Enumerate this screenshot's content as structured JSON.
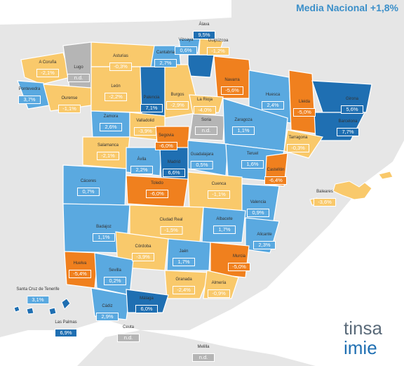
{
  "header": {
    "title": "Media Nacional +1,8%"
  },
  "legend_colors": {
    "dark_blue": "#1f6fb2",
    "light_blue": "#5aa9e0",
    "yellow": "#f9c96b",
    "orange": "#f0801e",
    "grey": "#b5b5b5",
    "land_bg": "#e6e6e6",
    "sea": "#ffffff"
  },
  "provinces": [
    {
      "name": "Álava",
      "value": "9,5%",
      "cat": "dark_blue"
    },
    {
      "name": "Vizcaya",
      "value": "0,6%",
      "cat": "light_blue"
    },
    {
      "name": "Guipúzcoa",
      "value": "-1,2%",
      "cat": "yellow"
    },
    {
      "name": "Cantabria",
      "value": "2,7%",
      "cat": "light_blue"
    },
    {
      "name": "Asturias",
      "value": "-0,3%",
      "cat": "yellow"
    },
    {
      "name": "A Coruña",
      "value": "-2,1%",
      "cat": "yellow"
    },
    {
      "name": "Lugo",
      "value": "n.d.",
      "cat": "grey"
    },
    {
      "name": "Pontevedra",
      "value": "3,7%",
      "cat": "light_blue"
    },
    {
      "name": "Ourense",
      "value": "-1,1%",
      "cat": "yellow"
    },
    {
      "name": "León",
      "value": "-2,2%",
      "cat": "yellow"
    },
    {
      "name": "Palencia",
      "value": "7,1%",
      "cat": "dark_blue"
    },
    {
      "name": "Burgos",
      "value": "-2,9%",
      "cat": "yellow"
    },
    {
      "name": "Navarra",
      "value": "-5,6%",
      "cat": "orange"
    },
    {
      "name": "La Rioja",
      "value": "-4,0%",
      "cat": "yellow"
    },
    {
      "name": "Huesca",
      "value": "2,4%",
      "cat": "light_blue"
    },
    {
      "name": "Lleida",
      "value": "-5,0%",
      "cat": "orange"
    },
    {
      "name": "Girona",
      "value": "5,6%",
      "cat": "dark_blue"
    },
    {
      "name": "Barcelona",
      "value": "7,7%",
      "cat": "dark_blue"
    },
    {
      "name": "Zamora",
      "value": "2,6%",
      "cat": "light_blue"
    },
    {
      "name": "Valladolid",
      "value": "-3,9%",
      "cat": "yellow"
    },
    {
      "name": "Soria",
      "value": "n.d.",
      "cat": "grey"
    },
    {
      "name": "Zaragoza",
      "value": "1,1%",
      "cat": "light_blue"
    },
    {
      "name": "Tarragona",
      "value": "-0,3%",
      "cat": "yellow"
    },
    {
      "name": "Salamanca",
      "value": "-2,1%",
      "cat": "yellow"
    },
    {
      "name": "Segovia",
      "value": "-6,0%",
      "cat": "orange"
    },
    {
      "name": "Ávila",
      "value": "2,2%",
      "cat": "light_blue"
    },
    {
      "name": "Guadalajara",
      "value": "0,5%",
      "cat": "light_blue"
    },
    {
      "name": "Teruel",
      "value": "1,6%",
      "cat": "light_blue"
    },
    {
      "name": "Madrid",
      "value": "6,6%",
      "cat": "dark_blue"
    },
    {
      "name": "Castellón",
      "value": "-6,4%",
      "cat": "orange"
    },
    {
      "name": "Cáceres",
      "value": "0,7%",
      "cat": "light_blue"
    },
    {
      "name": "Toledo",
      "value": "-6,0%",
      "cat": "orange"
    },
    {
      "name": "Cuenca",
      "value": "-1,1%",
      "cat": "yellow"
    },
    {
      "name": "Baleares",
      "value": "-3,6%",
      "cat": "yellow"
    },
    {
      "name": "Valencia",
      "value": "0,9%",
      "cat": "light_blue"
    },
    {
      "name": "Badajoz",
      "value": "1,1%",
      "cat": "light_blue"
    },
    {
      "name": "Ciudad Real",
      "value": "-1,5%",
      "cat": "yellow"
    },
    {
      "name": "Albacete",
      "value": "1,7%",
      "cat": "light_blue"
    },
    {
      "name": "Alicante",
      "value": "2,3%",
      "cat": "light_blue"
    },
    {
      "name": "Córdoba",
      "value": "-3,9%",
      "cat": "yellow"
    },
    {
      "name": "Jaén",
      "value": "1,7%",
      "cat": "light_blue"
    },
    {
      "name": "Murcia",
      "value": "-5,0%",
      "cat": "orange"
    },
    {
      "name": "Huelva",
      "value": "-5,4%",
      "cat": "orange"
    },
    {
      "name": "Sevilla",
      "value": "0,2%",
      "cat": "light_blue"
    },
    {
      "name": "Granada",
      "value": "-2,4%",
      "cat": "yellow"
    },
    {
      "name": "Almería",
      "value": "-0,9%",
      "cat": "yellow"
    },
    {
      "name": "Santa Cruz de Tenerife",
      "value": "3,1%",
      "cat": "light_blue"
    },
    {
      "name": "Cádiz",
      "value": "2,9%",
      "cat": "light_blue"
    },
    {
      "name": "Málaga",
      "value": "6,0%",
      "cat": "dark_blue"
    },
    {
      "name": "Las Palmas",
      "value": "6,9%",
      "cat": "dark_blue"
    },
    {
      "name": "Ceuta",
      "value": "n.d.",
      "cat": "grey"
    },
    {
      "name": "Melilla",
      "value": "n.d.",
      "cat": "grey"
    }
  ],
  "logo": {
    "brand": "tinsa",
    "brand_sub": "imie"
  }
}
